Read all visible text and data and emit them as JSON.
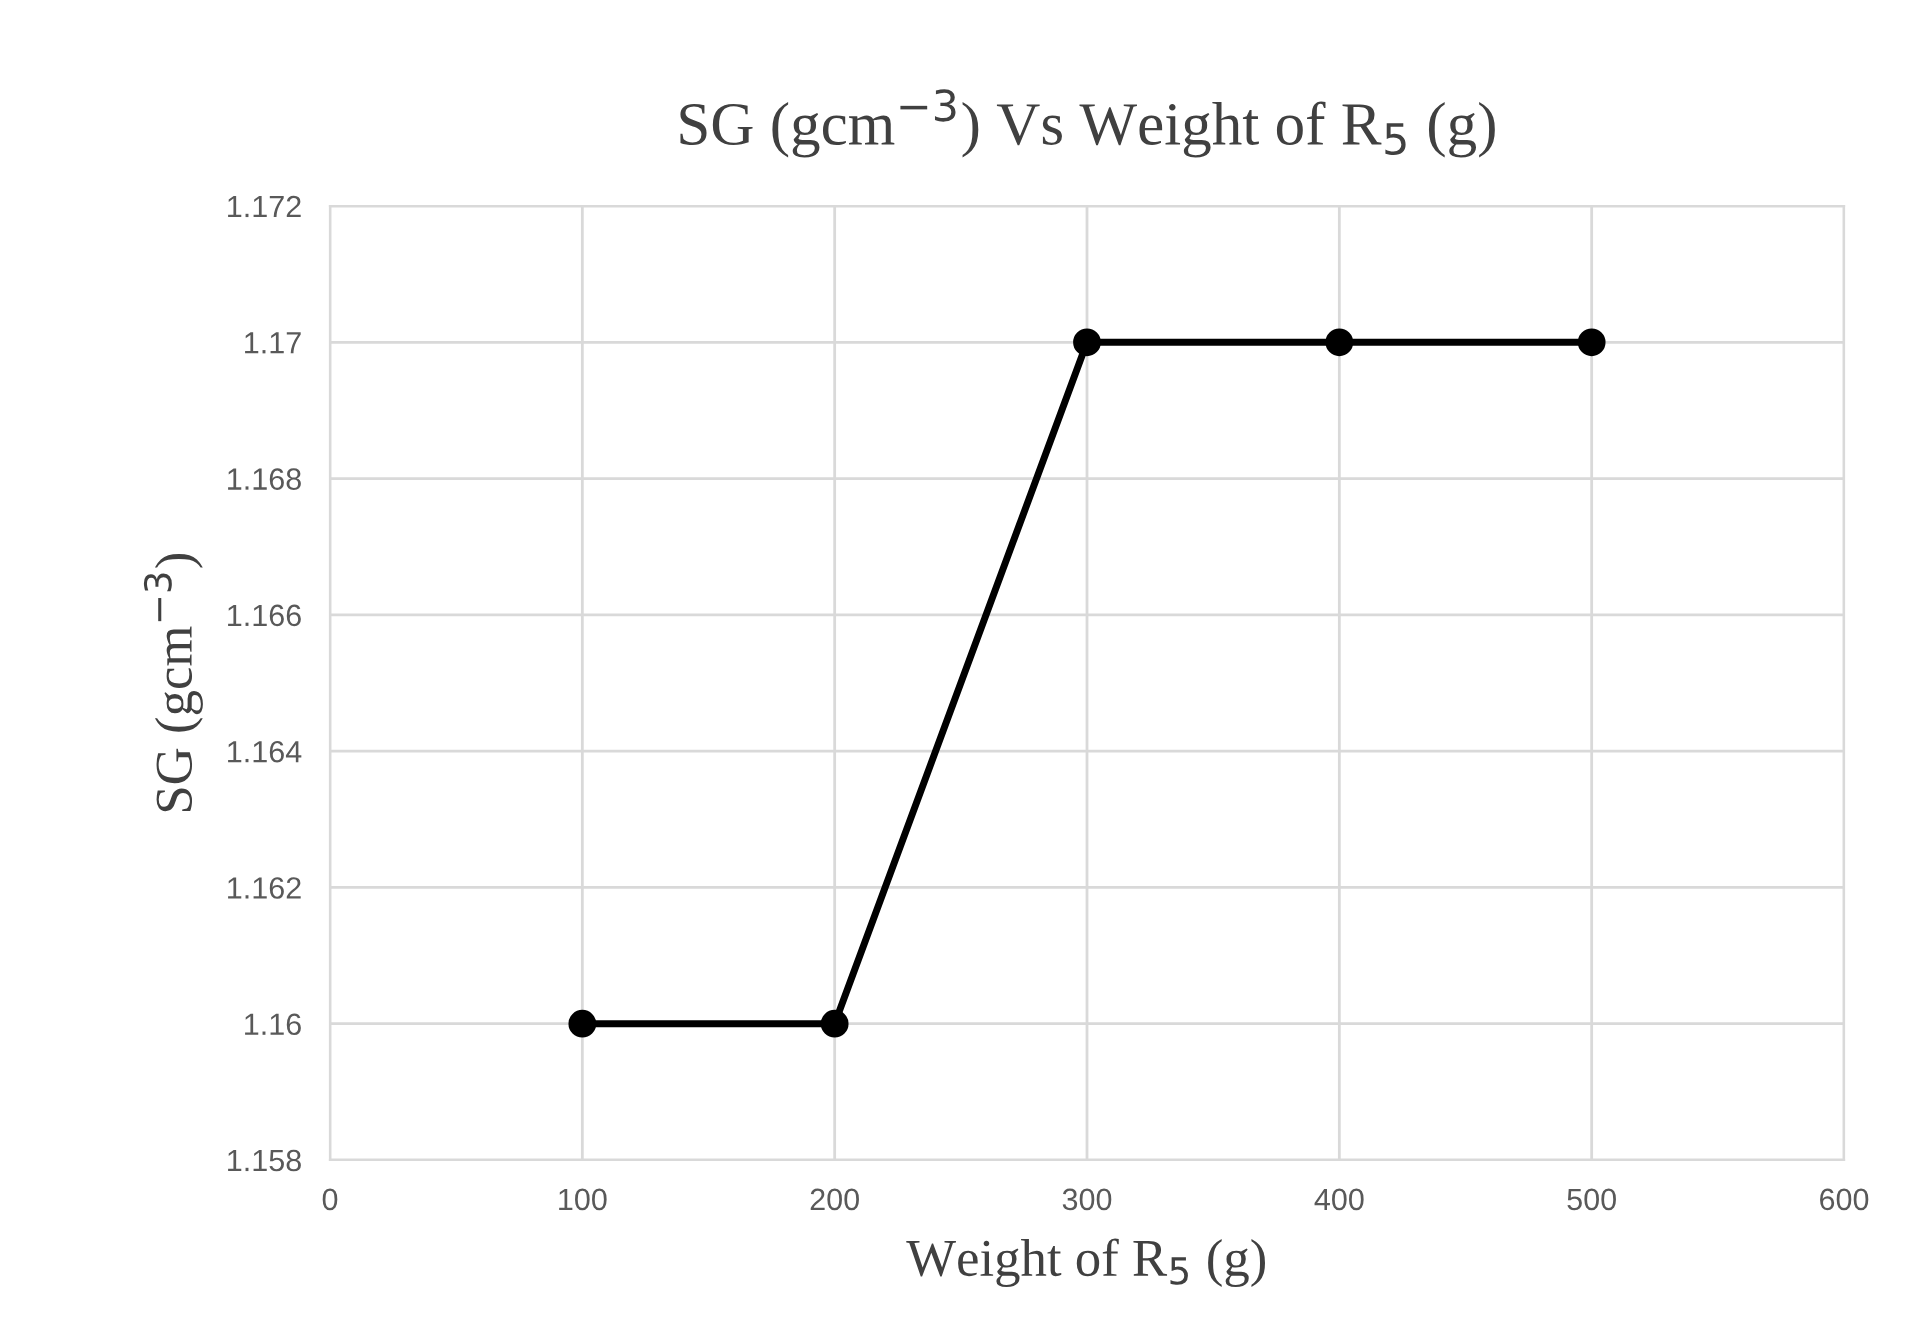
{
  "chart_data": {
    "type": "line",
    "title": "SG (gcm$^{−3}$) Vs Weight of R$_{5}$ (g)",
    "xlabel": "Weight of R$_{5}$ (g)",
    "ylabel": "SG (gcm$^{−3}$)",
    "x": [
      100,
      200,
      300,
      400,
      500
    ],
    "series": [
      {
        "color": "#000000",
        "values": [
          1.16,
          1.16,
          1.17,
          1.17,
          1.17
        ]
      }
    ],
    "xlim": [
      0,
      600
    ],
    "xticks": [
      0,
      100,
      200,
      300,
      400,
      500,
      600
    ],
    "ylim": [
      1.158,
      1.172
    ],
    "yticks": [
      1.158,
      1.16,
      1.162,
      1.164,
      1.166,
      1.168,
      1.17,
      1.172
    ],
    "grid": true,
    "marker": "circle",
    "line_style": "solid"
  }
}
